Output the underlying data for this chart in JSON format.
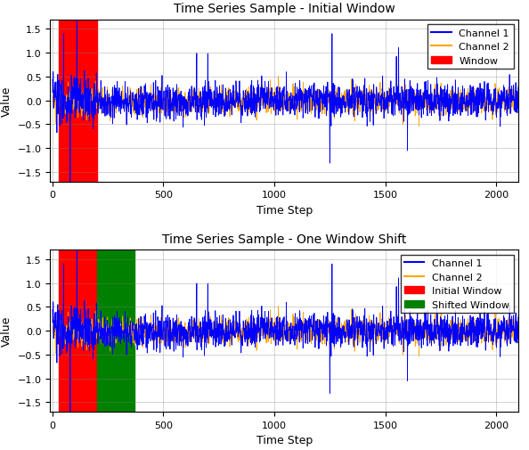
{
  "title1": "Time Series Sample - Initial Window",
  "title2": "Time Series Sample - One Window Shift",
  "xlabel": "Time Step",
  "ylabel": "Value",
  "n_samples": 2100,
  "window_start": 30,
  "window_end": 200,
  "shift_start": 30,
  "shift_end": 200,
  "shift2_start": 200,
  "shift2_end": 370,
  "ylim": [
    -1.7,
    1.7
  ],
  "xlim": [
    -10,
    2100
  ],
  "ch1_color": "#0000FF",
  "ch2_color": "#FFA500",
  "window_color": "#FF0000",
  "initial_window_color": "#FF0000",
  "shifted_window_color": "#008000",
  "legend1": [
    "Channel 1",
    "Channel 2",
    "Window"
  ],
  "legend2": [
    "Channel 1",
    "Channel 2",
    "Initial Window",
    "Shifted Window"
  ],
  "seed": 0,
  "title_fontsize": 10,
  "label_fontsize": 9,
  "tick_fontsize": 8,
  "legend_fontsize": 8
}
